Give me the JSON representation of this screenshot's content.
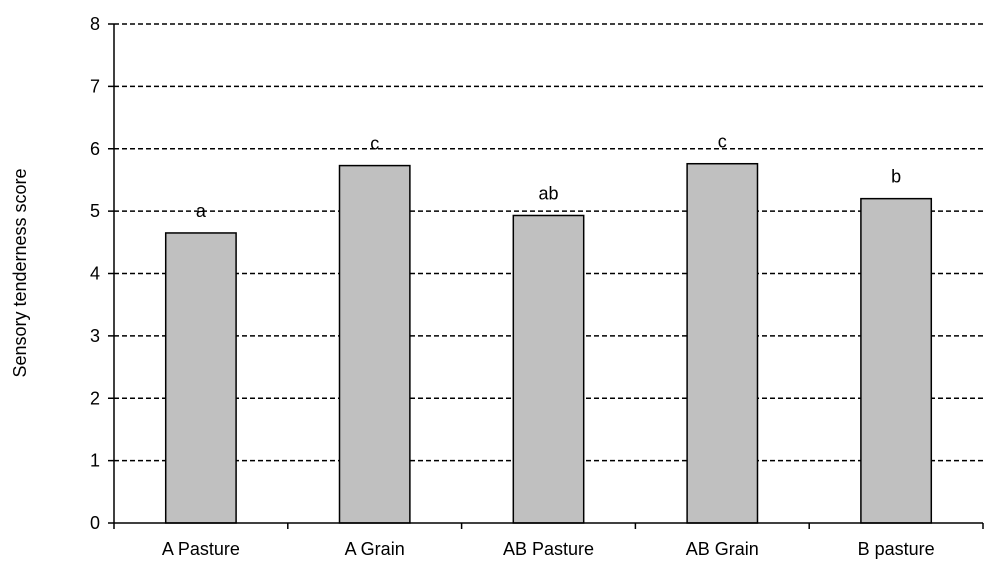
{
  "chart_data": {
    "type": "bar",
    "title": "",
    "xlabel": "",
    "ylabel": "Sensory tenderness score",
    "ylim": [
      0,
      8
    ],
    "yticks": [
      0,
      1,
      2,
      3,
      4,
      5,
      6,
      7,
      8
    ],
    "grid": true,
    "grid_style": "dashed",
    "categories": [
      "A Pasture",
      "A Grain",
      "AB Pasture",
      "AB Grain",
      "B pasture"
    ],
    "values": [
      4.65,
      5.73,
      4.93,
      5.76,
      5.2
    ],
    "annotations": [
      "a",
      "c",
      "ab",
      "c",
      "b"
    ],
    "bar_color": "#c0c0c0",
    "bar_edge_color": "#000000"
  }
}
